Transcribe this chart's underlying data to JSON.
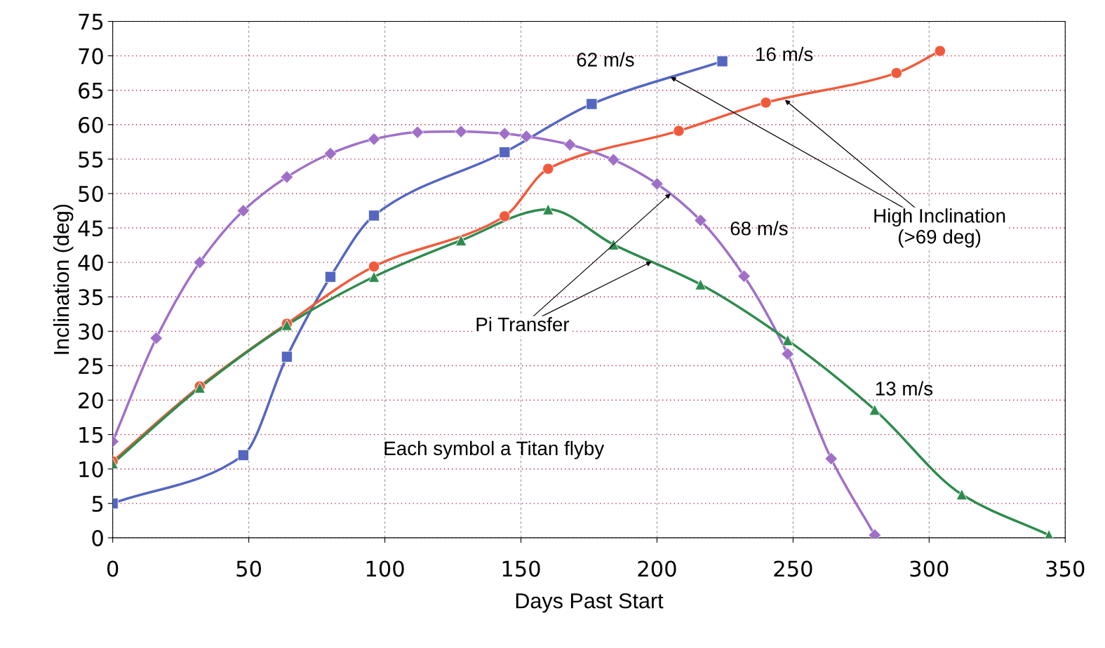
{
  "chart_data": {
    "type": "line",
    "xlabel": "Days Past Start",
    "ylabel": "Inclination (deg)",
    "xlim": [
      0,
      350
    ],
    "ylim": [
      0,
      75
    ],
    "xticks": [
      0,
      50,
      100,
      150,
      200,
      250,
      300,
      350
    ],
    "yticks": [
      0,
      5,
      10,
      15,
      20,
      25,
      30,
      35,
      40,
      45,
      50,
      55,
      60,
      65,
      70,
      75
    ],
    "grid": true,
    "legend": false,
    "series": [
      {
        "name": "62 m/s",
        "color": "#5566c0",
        "marker": "square",
        "x": [
          0,
          48,
          64,
          80,
          96,
          144,
          176,
          224
        ],
        "values": [
          5,
          12,
          26.3,
          37.9,
          46.8,
          56,
          63,
          69.2
        ]
      },
      {
        "name": "16 m/s",
        "color": "#f05a3c",
        "marker": "circle",
        "x": [
          0,
          32,
          64,
          96,
          144,
          160,
          208,
          240,
          288,
          304
        ],
        "values": [
          11.1,
          22,
          31.1,
          39.4,
          46.7,
          53.6,
          59.1,
          63.2,
          67.5,
          70.7
        ]
      },
      {
        "name": "68 m/s",
        "color": "#a070c8",
        "marker": "diamond",
        "x": [
          0,
          16,
          32,
          48,
          64,
          80,
          96,
          112,
          128,
          144,
          152,
          168,
          184,
          200,
          216,
          232,
          248,
          264,
          280
        ],
        "values": [
          14,
          29,
          40,
          47.5,
          52.4,
          55.8,
          57.9,
          58.9,
          59,
          58.7,
          58.3,
          57.1,
          54.9,
          51.4,
          46.1,
          38,
          26.7,
          11.5,
          0.4
        ]
      },
      {
        "name": "13 m/s",
        "color": "#2e8b4e",
        "marker": "triangle",
        "x": [
          0,
          32,
          64,
          96,
          128,
          160,
          184,
          216,
          248,
          280,
          312,
          344
        ],
        "values": [
          10.8,
          21.8,
          30.9,
          37.9,
          43.2,
          47.7,
          42.6,
          36.8,
          28.7,
          18.6,
          6.3,
          0.4
        ]
      }
    ],
    "annotations": [
      {
        "text": "High Inclination\n(>69 deg)",
        "x": 247,
        "y": 63.6
      },
      {
        "text": "Pi Transfer",
        "x": 205,
        "y": 50
      },
      "Each symbol a Titan flyby"
    ]
  }
}
